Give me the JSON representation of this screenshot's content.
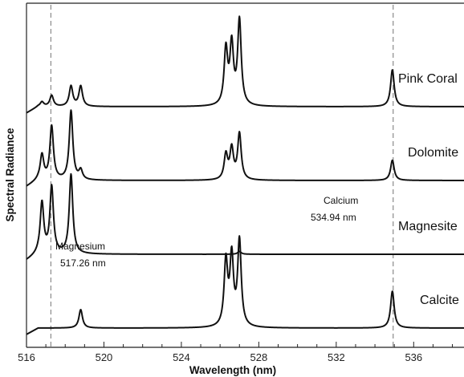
{
  "chart_data": {
    "type": "line",
    "xlabel": "Wavelength (nm)",
    "ylabel": "Spectral Radiance",
    "xlim": [
      516,
      538.6
    ],
    "x_ticks": [
      516,
      520,
      524,
      528,
      532,
      536
    ],
    "x_tick_labels": [
      "516",
      "520",
      "524",
      "528",
      "532",
      "536"
    ],
    "grid": false,
    "series": [
      {
        "name": "Pink Coral",
        "baseline_level": 3,
        "peaks": [
          {
            "x": 516.8,
            "y": 0.05
          },
          {
            "x": 517.3,
            "y": 0.12
          },
          {
            "x": 518.3,
            "y": 0.22
          },
          {
            "x": 518.8,
            "y": 0.22
          },
          {
            "x": 526.3,
            "y": 0.6
          },
          {
            "x": 526.6,
            "y": 0.64
          },
          {
            "x": 527.0,
            "y": 0.92
          },
          {
            "x": 534.9,
            "y": 0.4
          }
        ]
      },
      {
        "name": "Dolomite",
        "baseline_level": 2,
        "peaks": [
          {
            "x": 516.8,
            "y": 0.27
          },
          {
            "x": 517.3,
            "y": 0.58
          },
          {
            "x": 518.3,
            "y": 0.75
          },
          {
            "x": 518.8,
            "y": 0.1
          },
          {
            "x": 526.3,
            "y": 0.27
          },
          {
            "x": 526.6,
            "y": 0.33
          },
          {
            "x": 527.0,
            "y": 0.5
          },
          {
            "x": 534.9,
            "y": 0.22
          }
        ]
      },
      {
        "name": "Magnesite",
        "baseline_level": 1,
        "peaks": [
          {
            "x": 516.8,
            "y": 0.55
          },
          {
            "x": 517.3,
            "y": 0.72
          },
          {
            "x": 518.3,
            "y": 0.86
          },
          {
            "x": 527.0,
            "y": 0.03
          }
        ]
      },
      {
        "name": "Calcite",
        "baseline_level": 0,
        "peaks": [
          {
            "x": 518.8,
            "y": 0.2
          },
          {
            "x": 526.3,
            "y": 0.7
          },
          {
            "x": 526.6,
            "y": 0.74
          },
          {
            "x": 527.0,
            "y": 0.93
          },
          {
            "x": 534.9,
            "y": 0.4
          }
        ]
      }
    ],
    "reference_lines": [
      {
        "x": 517.26,
        "style": "dashed"
      },
      {
        "x": 534.94,
        "style": "dashed"
      }
    ],
    "annotations": [
      {
        "line1": "Magnesium",
        "line2": "517.26 nm"
      },
      {
        "line1": "Calcium",
        "line2": "534.94 nm"
      }
    ],
    "colors": {
      "line": "#111111",
      "reference_line": "#8a8a8a",
      "axis": "#222222"
    }
  }
}
